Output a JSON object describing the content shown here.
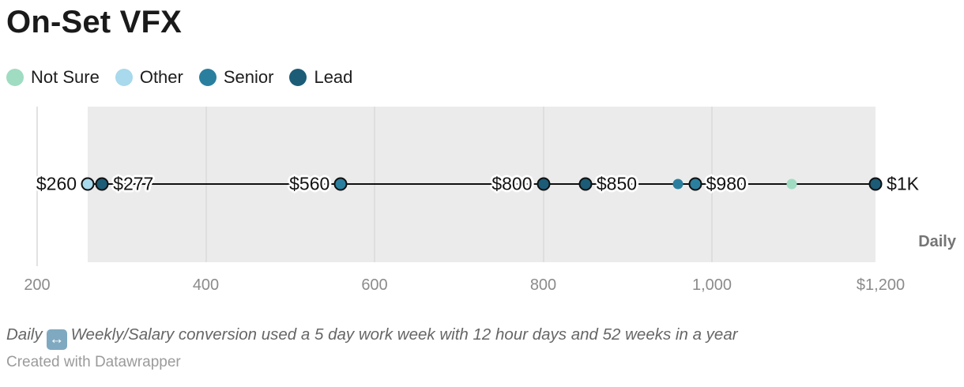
{
  "title": "On-Set VFX",
  "legend": [
    {
      "label": "Not Sure",
      "color": "#9fdcc2"
    },
    {
      "label": "Other",
      "color": "#a8d9ec"
    },
    {
      "label": "Senior",
      "color": "#2a7f9e"
    },
    {
      "label": "Lead",
      "color": "#1c5c77"
    }
  ],
  "colors": {
    "Not Sure": "#9fdcc2",
    "Other": "#a8d9ec",
    "Senior": "#2a7f9e",
    "Lead": "#1c5c77"
  },
  "axis": {
    "ticks": [
      {
        "value": 200,
        "label": "200"
      },
      {
        "value": 400,
        "label": "400"
      },
      {
        "value": 600,
        "label": "600"
      },
      {
        "value": 800,
        "label": "800"
      },
      {
        "value": 1000,
        "label": "1,000"
      },
      {
        "value": 1200,
        "label": "$1,200"
      }
    ],
    "unit_label": "Daily"
  },
  "chart_data": {
    "type": "scatter",
    "subtype": "dot-range-plot",
    "title": "On-Set VFX",
    "x_unit": "Daily rate, USD",
    "xlim": [
      200,
      1200
    ],
    "grid": true,
    "legend_position": "top-left",
    "range_band": [
      260,
      1194
    ],
    "points": [
      {
        "value": 260,
        "role": "Other",
        "label": "$260",
        "label_side": "left",
        "emphasized": true
      },
      {
        "value": 277,
        "role": "Lead",
        "label": "$277",
        "label_side": "right",
        "emphasized": true
      },
      {
        "value": 560,
        "role": "Senior",
        "label": "$560",
        "label_side": "left",
        "emphasized": true
      },
      {
        "value": 800,
        "role": "Lead",
        "label": "$800",
        "label_side": "left",
        "emphasized": true
      },
      {
        "value": 850,
        "role": "Lead",
        "label": "$850",
        "label_side": "right",
        "emphasized": true
      },
      {
        "value": 960,
        "role": "Senior",
        "label": "",
        "label_side": "none",
        "emphasized": false
      },
      {
        "value": 980,
        "role": "Senior",
        "label": "$980",
        "label_side": "right",
        "emphasized": true
      },
      {
        "value": 1095,
        "role": "Not Sure",
        "label": "",
        "label_side": "none",
        "emphasized": false
      },
      {
        "value": 1194,
        "role": "Lead",
        "label": "$1K",
        "label_side": "right",
        "emphasized": true
      }
    ]
  },
  "footer": {
    "note_before": "Daily",
    "note_emoji": "↔",
    "note_after": "Weekly/Salary conversion used a 5 day work week with 12 hour days and 52 weeks in a year",
    "credit": "Created with Datawrapper"
  }
}
